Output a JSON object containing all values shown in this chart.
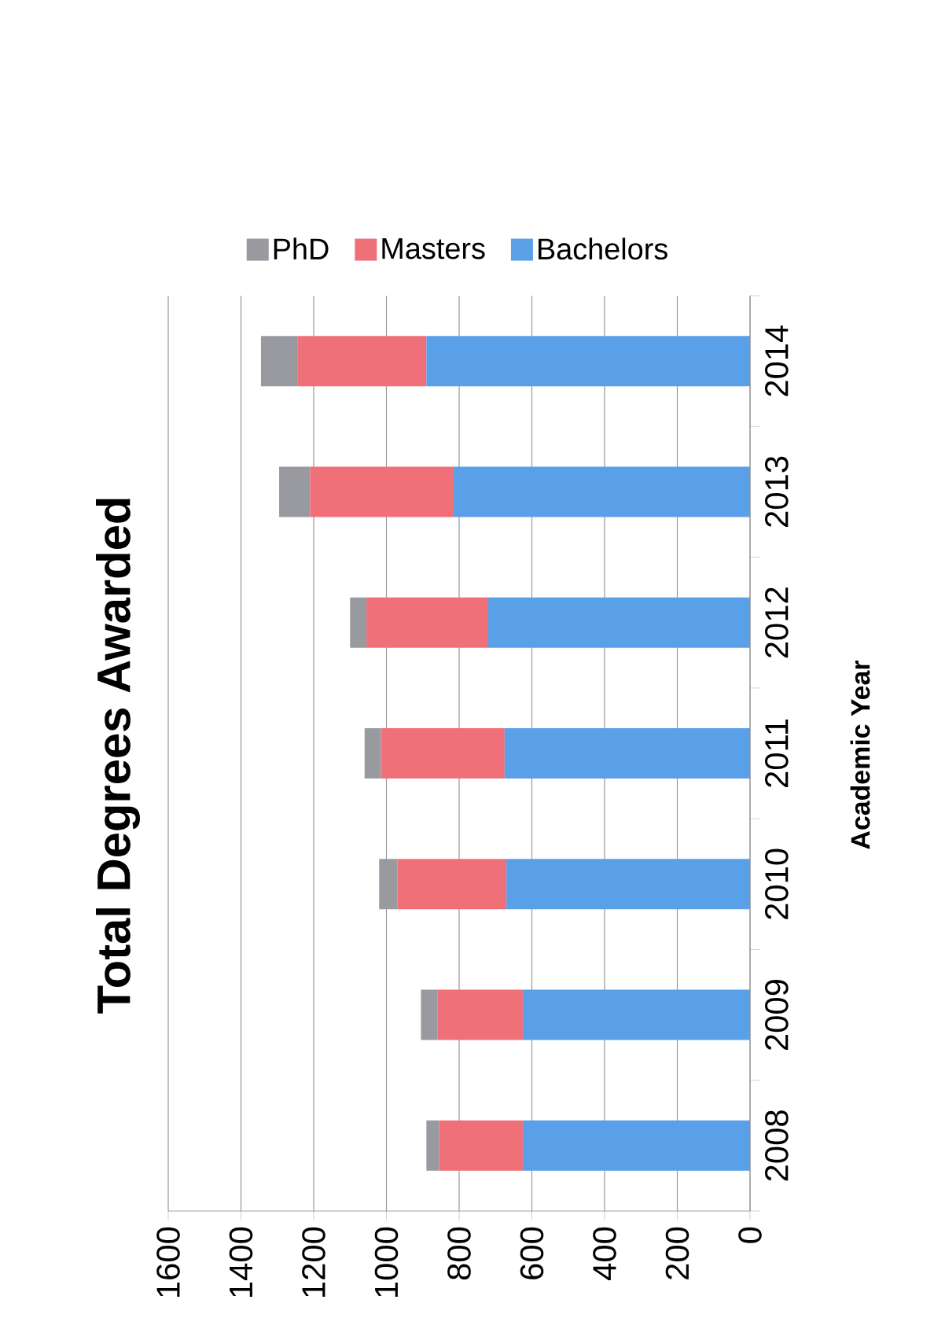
{
  "chart_data": {
    "type": "bar",
    "orientation": "horizontal",
    "title": "Total Degrees Awarded",
    "ylabel": "Academic Year",
    "categories": [
      "2014",
      "2013",
      "2012",
      "2011",
      "2010",
      "2009",
      "2008"
    ],
    "stacked": true,
    "series": [
      {
        "name": "Bachelors",
        "color": "#5aa0e8",
        "values": [
          890,
          815,
          720,
          675,
          670,
          625,
          625
        ]
      },
      {
        "name": "Masters",
        "color": "#f0707a",
        "values": [
          355,
          395,
          335,
          340,
          300,
          235,
          230
        ]
      },
      {
        "name": "PhD",
        "color": "#999aa0",
        "values": [
          100,
          85,
          45,
          45,
          50,
          45,
          35
        ]
      }
    ],
    "xlim": [
      1600,
      0
    ],
    "xticks": [
      0,
      200,
      400,
      600,
      800,
      1000,
      1200,
      1400,
      1600
    ],
    "grid": "x",
    "legend": "top"
  }
}
